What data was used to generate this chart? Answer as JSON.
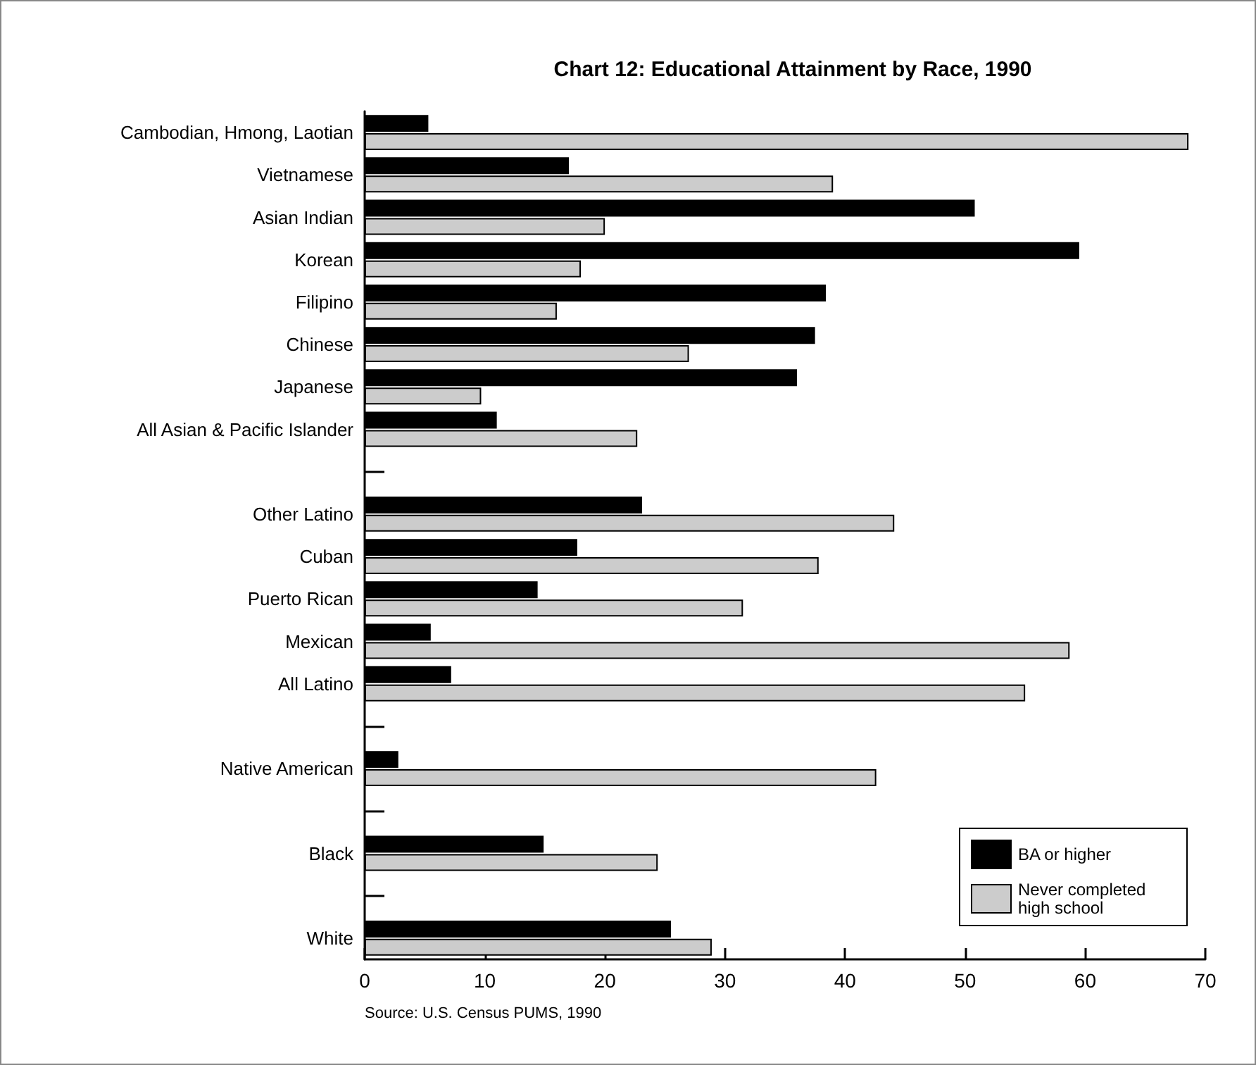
{
  "chart_data": {
    "type": "bar",
    "orientation": "horizontal",
    "title": "Chart 12: Educational Attainment by Race, 1990",
    "categories": [
      "Cambodian, Hmong, Laotian",
      "Vietnamese",
      "Asian Indian",
      "Korean",
      "Filipino",
      "Chinese",
      "Japanese",
      "All Asian & Pacific Islander",
      null,
      "Other Latino",
      "Cuban",
      "Puerto Rican",
      "Mexican",
      "All Latino",
      null,
      "Native American",
      null,
      "Black",
      null,
      "White"
    ],
    "series": [
      {
        "name": "BA or higher",
        "color": "#000000",
        "values": [
          5.3,
          17.0,
          50.8,
          59.5,
          38.4,
          37.5,
          36.0,
          11.0,
          null,
          23.1,
          17.7,
          14.4,
          5.5,
          7.2,
          null,
          2.8,
          null,
          14.9,
          null,
          25.5
        ]
      },
      {
        "name": "Never completed high school",
        "color": "#cccccc",
        "values": [
          68.6,
          39.0,
          20.0,
          18.0,
          16.0,
          27.0,
          9.7,
          22.7,
          null,
          44.1,
          37.8,
          31.5,
          58.7,
          55.0,
          null,
          42.6,
          null,
          24.4,
          null,
          28.9
        ]
      }
    ],
    "xlim": [
      0,
      70
    ],
    "xticks": [
      0,
      10,
      20,
      30,
      40,
      50,
      60,
      70
    ],
    "grid": false,
    "legend": "bottom right",
    "annotations": [
      "Source: U.S. Census PUMS, 1990"
    ]
  }
}
